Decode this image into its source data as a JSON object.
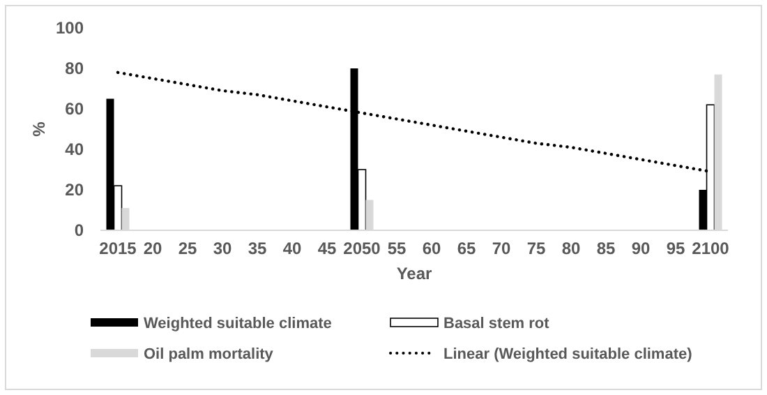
{
  "chart_data": {
    "type": "bar",
    "xlabel": "Year",
    "ylabel": "%",
    "categories": [
      "2015",
      "20",
      "25",
      "30",
      "35",
      "40",
      "45",
      "2050",
      "55",
      "60",
      "65",
      "70",
      "75",
      "80",
      "85",
      "90",
      "95",
      "2100"
    ],
    "series": [
      {
        "name": "Weighted suitable climate",
        "color": "#000000",
        "values": [
          65,
          null,
          null,
          null,
          null,
          null,
          null,
          80,
          null,
          null,
          null,
          null,
          null,
          null,
          null,
          null,
          null,
          20
        ]
      },
      {
        "name": "Basal stem rot",
        "color": "#ffffff",
        "values": [
          22,
          null,
          null,
          null,
          null,
          null,
          null,
          30,
          null,
          null,
          null,
          null,
          null,
          null,
          null,
          null,
          null,
          62
        ]
      },
      {
        "name": "Oil palm mortality",
        "color": "#d9d9d9",
        "values": [
          11,
          null,
          null,
          null,
          null,
          null,
          null,
          15,
          null,
          null,
          null,
          null,
          null,
          null,
          null,
          null,
          null,
          77
        ]
      },
      {
        "name": "Linear (Weighted suitable climate)",
        "type": "line",
        "color": "#000000",
        "values": [
          78,
          75,
          72,
          69,
          67,
          64,
          61,
          58,
          55,
          52,
          49,
          46,
          43,
          41,
          38,
          35,
          32,
          29
        ],
        "line_style": "dotted"
      }
    ],
    "ylim": [
      0,
      100
    ],
    "yticks": [
      0,
      20,
      40,
      60,
      80,
      100
    ],
    "grid": false,
    "legend": "bottom"
  }
}
